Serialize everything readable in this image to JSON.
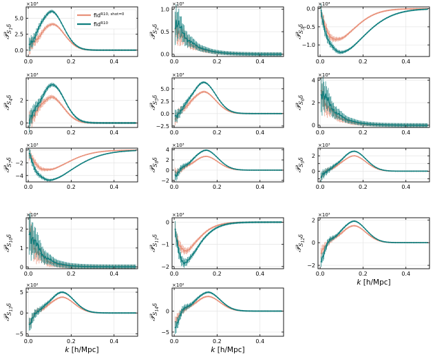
{
  "colors": {
    "fid": "#e8917a",
    "tile": "#0f7e7e",
    "grid": "#e4e4e4"
  },
  "legend": [
    {
      "label": "fid",
      "sup": "R10, shot=0",
      "color_key": "fid"
    },
    {
      "label": "fid",
      "sup": "R10",
      "color_key": "tile"
    }
  ],
  "xaxis": {
    "label": "k [h/Mpc]",
    "ticks": [
      0.0,
      0.2,
      0.4
    ],
    "tick_labels": [
      "0.0",
      "0.2",
      "0.4"
    ],
    "range": [
      -0.01,
      0.51
    ]
  },
  "chart_data": [
    {
      "type": "line",
      "panel": 1,
      "ylabel": "P S1 δ",
      "sub": "1",
      "exponent": "×10³",
      "ylim": [
        -1.0,
        6.8
      ],
      "yticks": [
        0.0,
        2.5,
        5.0
      ],
      "ytick_labels": [
        "0.0",
        "2.5",
        "5.0"
      ],
      "shape": "hump",
      "series": [
        {
          "name": "fid shot=0",
          "peak_k": 0.115,
          "peak": 4.1,
          "band": 0.35,
          "neg": -0.3
        },
        {
          "name": "fid",
          "peak_k": 0.11,
          "peak": 6.1,
          "band": 0.35,
          "neg": -0.4
        }
      ]
    },
    {
      "type": "line",
      "panel": 2,
      "ylabel": "P S2 δ",
      "sub": "2",
      "exponent": "×10⁵",
      "ylim": [
        -0.05,
        1.05
      ],
      "yticks": [
        0.0,
        0.5,
        1.0
      ],
      "ytick_labels": [
        "0.0",
        "0.5",
        "1.0"
      ],
      "shape": "decay",
      "series": [
        {
          "name": "fid shot=0",
          "amp": 0.6,
          "tau": 0.07,
          "band": 0.1
        },
        {
          "name": "fid",
          "amp": 0.72,
          "tau": 0.07,
          "band": 0.12
        }
      ]
    },
    {
      "type": "line",
      "panel": 3,
      "ylabel": "P S3 δ",
      "sub": "3",
      "exponent": "×10⁴",
      "ylim": [
        -1.32,
        0.05
      ],
      "yticks": [
        -1.0,
        -0.5,
        0.0
      ],
      "ytick_labels": [
        "−1.0",
        "−0.5",
        "0.0"
      ],
      "shape": "dip",
      "series": [
        {
          "name": "fid shot=0",
          "peak_k": 0.08,
          "peak": -0.85,
          "width": 0.06,
          "band": 0.06
        },
        {
          "name": "fid",
          "peak_k": 0.1,
          "peak": -1.2,
          "width": 0.08,
          "band": 0.06
        }
      ]
    },
    {
      "type": "line",
      "panel": 4,
      "ylabel": "P S4 δ",
      "sub": "4",
      "exponent": "×10³",
      "ylim": [
        -0.4,
        4.0
      ],
      "yticks": [
        0,
        2
      ],
      "ytick_labels": [
        "0",
        "2"
      ],
      "shape": "hump",
      "series": [
        {
          "name": "fid shot=0",
          "peak_k": 0.11,
          "peak": 2.3,
          "band": 0.25,
          "neg": -0.1
        },
        {
          "name": "fid",
          "peak_k": 0.115,
          "peak": 3.4,
          "band": 0.25,
          "neg": -0.1
        }
      ]
    },
    {
      "type": "line",
      "panel": 5,
      "ylabel": "P S5 δ",
      "sub": "5",
      "exponent": "×10³",
      "ylim": [
        -2.8,
        7.2
      ],
      "yticks": [
        -2.5,
        0.0,
        2.5,
        5.0
      ],
      "ytick_labels": [
        "−2.5",
        "0.0",
        "2.5",
        "5.0"
      ],
      "shape": "hump",
      "series": [
        {
          "name": "fid shot=0",
          "peak_k": 0.14,
          "peak": 4.4,
          "band": 0.4,
          "neg": -1.3
        },
        {
          "name": "fid",
          "peak_k": 0.14,
          "peak": 6.3,
          "band": 0.4,
          "neg": -1.5
        }
      ]
    },
    {
      "type": "line",
      "panel": 6,
      "ylabel": "P S6 δ",
      "sub": "6",
      "exponent": "×10⁴",
      "ylim": [
        -0.2,
        4.2
      ],
      "yticks": [
        0,
        2,
        4
      ],
      "ytick_labels": [
        "0",
        "2",
        "4"
      ],
      "shape": "decay",
      "series": [
        {
          "name": "fid shot=0",
          "amp": 2.6,
          "tau": 0.06,
          "band": 0.4
        },
        {
          "name": "fid",
          "amp": 3.1,
          "tau": 0.065,
          "band": 0.5
        }
      ]
    },
    {
      "type": "line",
      "panel": 7,
      "ylabel": "P S7 δ",
      "sub": "7",
      "exponent": "×10³",
      "ylim": [
        -5.0,
        0.3
      ],
      "yticks": [
        -4,
        -2,
        0
      ],
      "ytick_labels": [
        "−4",
        "−2",
        "0"
      ],
      "shape": "dip",
      "series": [
        {
          "name": "fid shot=0",
          "peak_k": 0.09,
          "peak": -3.1,
          "width": 0.07,
          "band": 0.25
        },
        {
          "name": "fid",
          "peak_k": 0.1,
          "peak": -4.7,
          "width": 0.09,
          "band": 0.25
        }
      ]
    },
    {
      "type": "line",
      "panel": 8,
      "ylabel": "P S8 δ",
      "sub": "8",
      "exponent": "×10³",
      "ylim": [
        -2.3,
        4.3
      ],
      "yticks": [
        -2,
        0,
        2,
        4
      ],
      "ytick_labels": [
        "−2",
        "0",
        "2",
        "4"
      ],
      "shape": "hump",
      "series": [
        {
          "name": "fid shot=0",
          "peak_k": 0.15,
          "peak": 2.7,
          "band": 0.25,
          "neg": -0.9
        },
        {
          "name": "fid",
          "peak_k": 0.15,
          "peak": 3.9,
          "band": 0.3,
          "neg": -1.2
        }
      ]
    },
    {
      "type": "line",
      "panel": 9,
      "ylabel": "P S9 δ",
      "sub": "9",
      "exponent": "×10³",
      "ylim": [
        -1.4,
        3.0
      ],
      "yticks": [
        -1,
        0,
        1,
        2
      ],
      "ytick_labels": [
        "",
        "0",
        "",
        "2"
      ],
      "shape": "hump",
      "series": [
        {
          "name": "fid shot=0",
          "peak_k": 0.16,
          "peak": 2.0,
          "band": 0.15,
          "neg": -0.6
        },
        {
          "name": "fid",
          "peak_k": 0.16,
          "peak": 2.6,
          "band": 0.2,
          "neg": -0.9
        }
      ]
    },
    {
      "type": "line",
      "panel": 10,
      "ylabel": "P S10 δ",
      "sub": "10",
      "exponent": "×10⁴",
      "ylim": [
        -0.1,
        2.6
      ],
      "yticks": [
        0,
        1,
        2
      ],
      "ytick_labels": [
        "0",
        "1",
        "2"
      ],
      "shape": "decay",
      "series": [
        {
          "name": "fid shot=0",
          "amp": 1.6,
          "tau": 0.05,
          "band": 0.3
        },
        {
          "name": "fid",
          "amp": 1.9,
          "tau": 0.055,
          "band": 0.35
        }
      ]
    },
    {
      "type": "line",
      "panel": 11,
      "ylabel": "P S11 δ",
      "sub": "11",
      "exponent": "×10³",
      "ylim": [
        -2.1,
        0.2
      ],
      "yticks": [
        -2,
        -1,
        0
      ],
      "ytick_labels": [
        "−2",
        "−1",
        "0"
      ],
      "shape": "dip",
      "series": [
        {
          "name": "fid shot=0",
          "peak_k": 0.05,
          "peak": -1.3,
          "width": 0.06,
          "band": 0.1
        },
        {
          "name": "fid",
          "peak_k": 0.05,
          "peak": -1.8,
          "width": 0.07,
          "band": 0.12
        }
      ]
    },
    {
      "type": "line",
      "panel": 12,
      "ylabel": "P S12 δ",
      "sub": "12",
      "exponent": "×10³",
      "ylim": [
        -2.3,
        2.2
      ],
      "yticks": [
        -2,
        0,
        2
      ],
      "ytick_labels": [
        "−2",
        "0",
        "2"
      ],
      "shape": "hump",
      "series": [
        {
          "name": "fid shot=0",
          "peak_k": 0.16,
          "peak": 1.5,
          "band": 0.15,
          "neg": -1.0
        },
        {
          "name": "fid",
          "peak_k": 0.16,
          "peak": 1.9,
          "band": 0.15,
          "neg": -1.6
        }
      ]
    },
    {
      "type": "line",
      "panel": 13,
      "ylabel": "P S13 δ",
      "sub": "13",
      "exponent": "×10²",
      "ylim": [
        -5.6,
        6.0
      ],
      "yticks": [
        -5,
        0,
        5
      ],
      "ytick_labels": [
        "−5",
        "0",
        "5"
      ],
      "shape": "hump",
      "series": [
        {
          "name": "fid shot=0",
          "peak_k": 0.16,
          "peak": 3.8,
          "band": 0.4,
          "neg": -2.5
        },
        {
          "name": "fid",
          "peak_k": 0.16,
          "peak": 5.0,
          "band": 0.5,
          "neg": -3.5
        }
      ]
    },
    {
      "type": "line",
      "panel": 14,
      "ylabel": "P S14 δ",
      "sub": "14",
      "exponent": "×10²",
      "ylim": [
        -6.0,
        5.5
      ],
      "yticks": [
        -5,
        0
      ],
      "ytick_labels": [
        "−5",
        "0"
      ],
      "shape": "hump",
      "series": [
        {
          "name": "fid shot=0",
          "peak_k": 0.16,
          "peak": 3.5,
          "band": 0.4,
          "neg": -3.0
        },
        {
          "name": "fid",
          "peak_k": 0.16,
          "peak": 4.5,
          "band": 0.5,
          "neg": -4.0
        }
      ]
    }
  ]
}
